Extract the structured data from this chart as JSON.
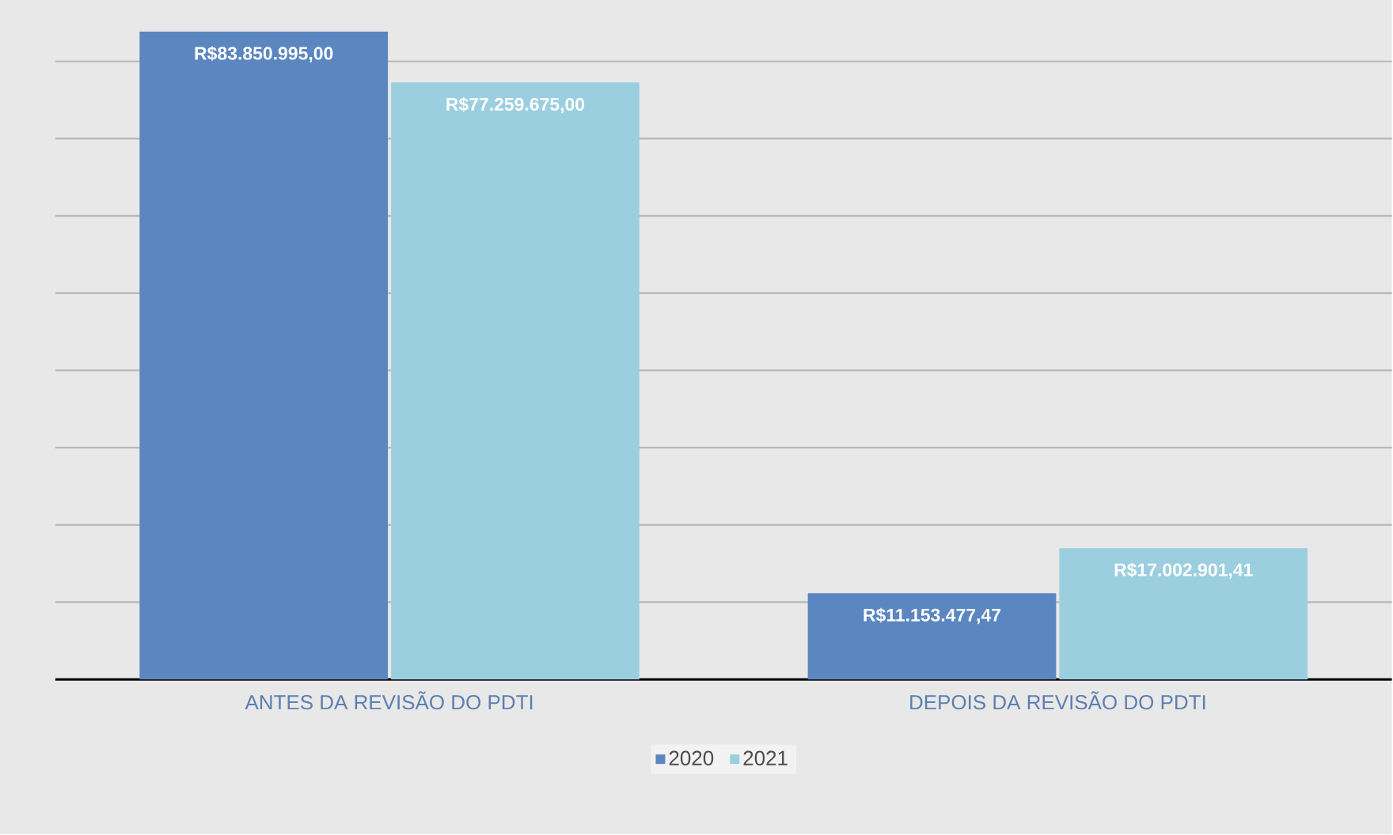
{
  "chart_data": {
    "type": "bar",
    "categories": [
      "ANTES DA REVISÃO DO PDTI",
      "DEPOIS DA REVISÃO DO PDTI"
    ],
    "series": [
      {
        "name": "2020",
        "color": "#5b86c0",
        "values": [
          83850995.0,
          11153477.47
        ],
        "value_labels": [
          "R$83.850.995,00",
          "R$11.153.477,47"
        ]
      },
      {
        "name": "2021",
        "color": "#9bcfdf",
        "values": [
          77259675.0,
          17002901.41
        ],
        "value_labels": [
          "R$77.259.675,00",
          "R$17.002.901,41"
        ]
      }
    ],
    "grid": "y",
    "legend": "bottom"
  }
}
